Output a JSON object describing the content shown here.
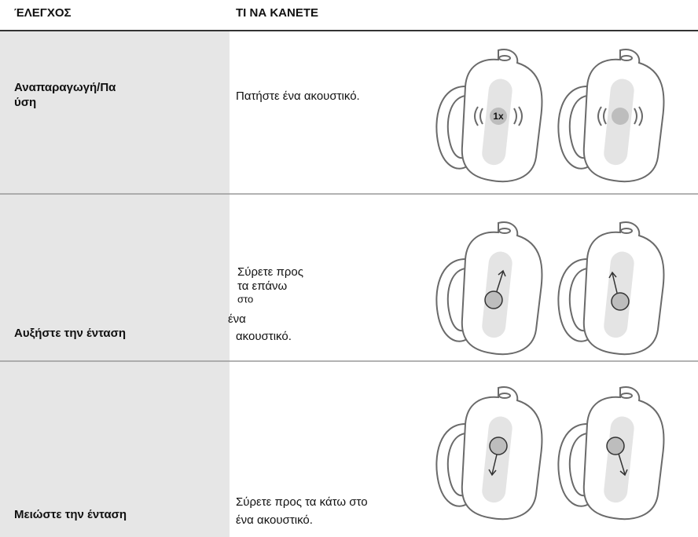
{
  "header": {
    "columns": [
      "ΈΛΕΓΧΟΣ",
      "ΤΙ ΝΑ ΚΑΝΕΤΕ"
    ]
  },
  "rows": [
    {
      "control": [
        "Αναπαραγωγή/Πα",
        "ύση"
      ],
      "action": [
        "Πατήστε ένα ακουστικό."
      ],
      "icon_label": "1x"
    },
    {
      "control": [
        "Αυξήστε την ένταση"
      ],
      "action": [
        "Σύρετε προς",
        "τα επάνω",
        "στο",
        "ένα",
        "ακουστικό."
      ]
    },
    {
      "control": [
        "Μειώστε την ένταση"
      ],
      "action": [
        "Σύρετε προς τα κάτω στο",
        "ένα ακουστικό."
      ]
    }
  ]
}
